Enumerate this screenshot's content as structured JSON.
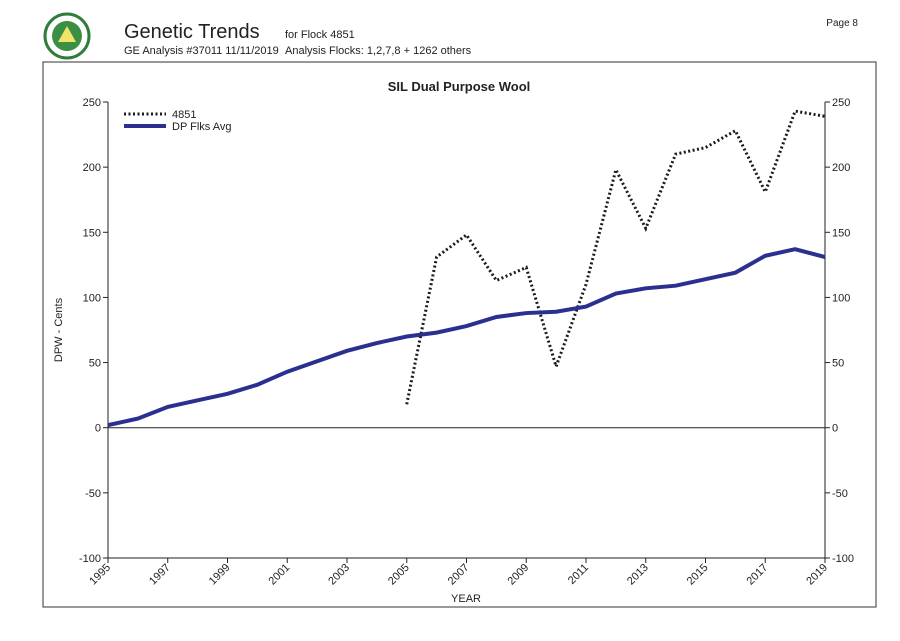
{
  "header": {
    "title": "Genetic Trends",
    "flock": "for Flock 4851",
    "analysis": "GE Analysis #37011 11/11/2019",
    "flocks": "Analysis Flocks: 1,2,7,8 + 1262 others",
    "page": "Page 8"
  },
  "chart_data": {
    "type": "line",
    "title": "SIL Dual Purpose Wool",
    "y_label": "DPW - Cents",
    "x_label": "YEAR",
    "x": [
      1995,
      1996,
      1997,
      1998,
      1999,
      2000,
      2001,
      2002,
      2003,
      2004,
      2005,
      2006,
      2007,
      2008,
      2009,
      2010,
      2011,
      2012,
      2013,
      2014,
      2015,
      2016,
      2017,
      2018,
      2019
    ],
    "series": [
      {
        "name": "4851",
        "color": "#1a1a1a",
        "style": "dotted",
        "values": [
          null,
          null,
          null,
          null,
          null,
          null,
          null,
          null,
          null,
          null,
          18,
          131,
          148,
          113,
          123,
          47,
          110,
          198,
          153,
          210,
          215,
          228,
          181,
          243,
          239
        ]
      },
      {
        "name": "DP Flks Avg",
        "color": "#2b3090",
        "style": "solid",
        "values": [
          2,
          7,
          16,
          21,
          26,
          33,
          43,
          51,
          59,
          65,
          70,
          73,
          78,
          85,
          88,
          89,
          93,
          103,
          107,
          109,
          114,
          119,
          132,
          137,
          131
        ]
      }
    ],
    "xlim": [
      1995,
      2019
    ],
    "xticks": [
      1995,
      1997,
      1999,
      2001,
      2003,
      2005,
      2007,
      2009,
      2011,
      2013,
      2015,
      2017,
      2019
    ],
    "ylim": [
      -100,
      250
    ],
    "yticks": [
      -100,
      -50,
      0,
      50,
      100,
      150,
      200,
      250
    ],
    "y2lim": [
      -100,
      250
    ],
    "y2ticks": [
      -100,
      -50,
      0,
      50,
      100,
      150,
      200,
      250
    ],
    "legend": "upper-left"
  }
}
